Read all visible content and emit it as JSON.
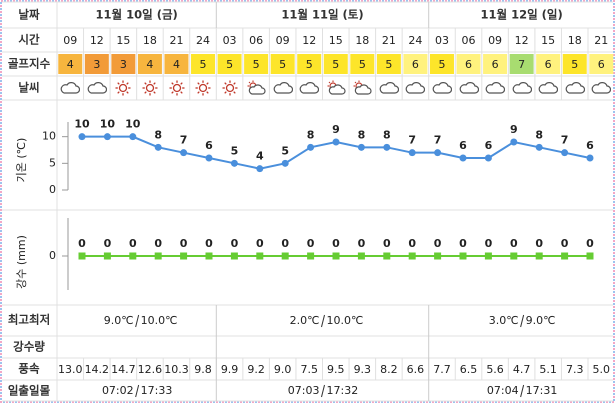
{
  "row_labels": {
    "date": "날짜",
    "time": "시간",
    "golf": "골프지수",
    "weather": "날씨",
    "minmax": "최고최저",
    "rain": "강수량",
    "wind": "풍속",
    "sun": "일출일몰"
  },
  "dates": [
    "11월 10일 (금)",
    "11월 11일 (토)",
    "11월 12일 (일)"
  ],
  "times": [
    "09",
    "12",
    "15",
    "18",
    "21",
    "24",
    "03",
    "06",
    "09",
    "12",
    "15",
    "18",
    "21",
    "24",
    "03",
    "06",
    "09",
    "12",
    "15",
    "18",
    "21"
  ],
  "golf_index": {
    "values": [
      4,
      3,
      3,
      4,
      4,
      5,
      5,
      5,
      5,
      5,
      5,
      5,
      5,
      6,
      5,
      6,
      6,
      7,
      6,
      5,
      6
    ],
    "colors": {
      "3": "#f29b38",
      "4": "#f7b53e",
      "5": "#fde52a",
      "6": "#fff27e",
      "7": "#a8dc70"
    }
  },
  "chart_data": [
    {
      "type": "line",
      "y_label": "기온 (℃)",
      "values": [
        10,
        10,
        10,
        8,
        7,
        6,
        5,
        4,
        5,
        8,
        9,
        8,
        8,
        7,
        7,
        6,
        6,
        9,
        8,
        7,
        6
      ],
      "ylim": [
        0,
        12
      ],
      "yticks": [
        0,
        5,
        10
      ],
      "color": "#4a8fdc",
      "marker": "circle"
    },
    {
      "type": "line",
      "y_label": "강수 (mm)",
      "values": [
        0,
        0,
        0,
        0,
        0,
        0,
        0,
        0,
        0,
        0,
        0,
        0,
        0,
        0,
        0,
        0,
        0,
        0,
        0,
        0,
        0
      ],
      "ylim": [
        -1,
        1
      ],
      "yticks": [
        0
      ],
      "color": "#6c3",
      "marker": "square"
    }
  ],
  "min_max": [
    {
      "min": "9.0℃",
      "max": "10.0℃"
    },
    {
      "min": "2.0℃",
      "max": "10.0℃"
    },
    {
      "min": "3.0℃",
      "max": "9.0℃"
    }
  ],
  "wind": [
    "13.0",
    "14.2",
    "14.7",
    "12.6",
    "10.3",
    "9.8",
    "9.9",
    "9.2",
    "9.0",
    "7.5",
    "9.5",
    "9.3",
    "8.2",
    "6.6",
    "7.7",
    "6.5",
    "5.6",
    "4.7",
    "5.1",
    "7.3",
    "5.0"
  ],
  "sunrise_sunset": [
    {
      "rise": "07:02",
      "set": "17:33"
    },
    {
      "rise": "07:03",
      "set": "17:32"
    },
    {
      "rise": "07:04",
      "set": "17:31"
    }
  ]
}
